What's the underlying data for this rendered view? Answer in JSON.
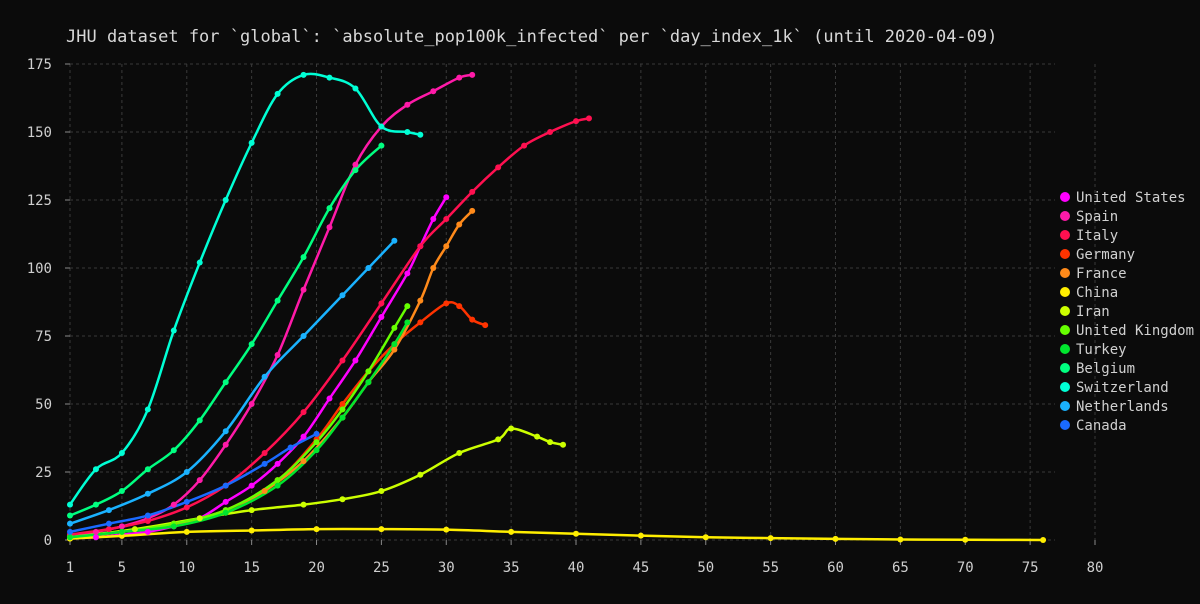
{
  "chart_data": {
    "type": "scatter",
    "title": "JHU dataset for `global`: `absolute_pop100k_infected` per `day_index_1k` (until 2020-04-09)",
    "xlabel": "",
    "ylabel": "",
    "xlim": [
      1,
      80
    ],
    "ylim": [
      0,
      175
    ],
    "x_ticks": [
      1,
      5,
      10,
      15,
      20,
      25,
      30,
      35,
      40,
      45,
      50,
      55,
      60,
      65,
      70,
      75,
      80
    ],
    "y_ticks": [
      0,
      25,
      50,
      75,
      100,
      125,
      150,
      175
    ],
    "grid": true,
    "legend": "right",
    "style": "points with fitted trend lines",
    "series": [
      {
        "name": "United States",
        "color": "#ff00ff",
        "x": [
          1,
          3,
          5,
          7,
          9,
          11,
          13,
          15,
          17,
          19,
          21,
          23,
          25,
          27,
          28,
          29,
          30
        ],
        "y": [
          1,
          1,
          2,
          3,
          5,
          8,
          14,
          20,
          28,
          38,
          52,
          66,
          82,
          98,
          108,
          118,
          126
        ]
      },
      {
        "name": "Spain",
        "color": "#ff1aa8",
        "x": [
          1,
          3,
          5,
          7,
          9,
          11,
          13,
          15,
          17,
          19,
          21,
          23,
          25,
          27,
          29,
          31,
          32
        ],
        "y": [
          2,
          3,
          5,
          8,
          13,
          22,
          35,
          50,
          68,
          92,
          115,
          138,
          152,
          160,
          165,
          170,
          171
        ]
      },
      {
        "name": "Italy",
        "color": "#ff1050",
        "x": [
          1,
          4,
          7,
          10,
          13,
          16,
          19,
          22,
          25,
          28,
          30,
          32,
          34,
          36,
          38,
          40,
          41
        ],
        "y": [
          2,
          4,
          7,
          12,
          20,
          32,
          47,
          66,
          87,
          108,
          118,
          128,
          137,
          145,
          150,
          154,
          155
        ]
      },
      {
        "name": "Germany",
        "color": "#ff3300",
        "x": [
          1,
          5,
          9,
          13,
          17,
          20,
          22,
          24,
          26,
          28,
          30,
          31,
          32,
          33
        ],
        "y": [
          1,
          3,
          6,
          11,
          22,
          37,
          50,
          62,
          72,
          80,
          87,
          86,
          81,
          79
        ]
      },
      {
        "name": "France",
        "color": "#ff8a1a",
        "x": [
          1,
          5,
          9,
          13,
          16,
          19,
          22,
          24,
          26,
          28,
          29,
          30,
          31,
          32
        ],
        "y": [
          1,
          3,
          6,
          10,
          18,
          29,
          45,
          58,
          70,
          88,
          100,
          108,
          116,
          121
        ]
      },
      {
        "name": "China",
        "color": "#ffee00",
        "x": [
          1,
          5,
          10,
          15,
          20,
          25,
          30,
          35,
          40,
          45,
          50,
          55,
          60,
          65,
          70,
          76
        ],
        "y": [
          0.5,
          1.5,
          3,
          3.5,
          4,
          4,
          3.8,
          3,
          2.3,
          1.6,
          1,
          0.7,
          0.4,
          0.2,
          0.1,
          0
        ]
      },
      {
        "name": "Iran",
        "color": "#ccff00",
        "x": [
          1,
          6,
          11,
          15,
          19,
          22,
          25,
          28,
          31,
          34,
          35,
          37,
          38,
          39
        ],
        "y": [
          1,
          4,
          8,
          11,
          13,
          15,
          18,
          24,
          32,
          37,
          41,
          38,
          36,
          35
        ]
      },
      {
        "name": "United Kingdom",
        "color": "#66ff00",
        "x": [
          1,
          5,
          9,
          13,
          17,
          20,
          22,
          24,
          26,
          27
        ],
        "y": [
          1,
          3,
          6,
          11,
          22,
          36,
          48,
          62,
          78,
          86
        ]
      },
      {
        "name": "Turkey",
        "color": "#00e62e",
        "x": [
          1,
          5,
          9,
          13,
          17,
          20,
          22,
          24,
          26,
          27
        ],
        "y": [
          1,
          3,
          5,
          10,
          20,
          33,
          45,
          58,
          72,
          80
        ]
      },
      {
        "name": "Belgium",
        "color": "#00ff80",
        "x": [
          1,
          3,
          5,
          7,
          9,
          11,
          13,
          15,
          17,
          19,
          21,
          23,
          25
        ],
        "y": [
          9,
          13,
          18,
          26,
          33,
          44,
          58,
          72,
          88,
          104,
          122,
          136,
          145
        ]
      },
      {
        "name": "Switzerland",
        "color": "#00ffd5",
        "x": [
          1,
          3,
          5,
          7,
          9,
          11,
          13,
          15,
          17,
          19,
          21,
          23,
          25,
          27,
          28
        ],
        "y": [
          13,
          26,
          32,
          48,
          77,
          102,
          125,
          146,
          164,
          171,
          170,
          166,
          152,
          150,
          149
        ]
      },
      {
        "name": "Netherlands",
        "color": "#1ab2ff",
        "x": [
          1,
          4,
          7,
          10,
          13,
          16,
          19,
          22,
          24,
          26
        ],
        "y": [
          6,
          11,
          17,
          25,
          40,
          60,
          75,
          90,
          100,
          110
        ]
      },
      {
        "name": "Canada",
        "color": "#1a6aff",
        "x": [
          1,
          4,
          7,
          10,
          13,
          16,
          18,
          20
        ],
        "y": [
          3,
          6,
          9,
          14,
          20,
          28,
          34,
          39
        ]
      }
    ]
  }
}
